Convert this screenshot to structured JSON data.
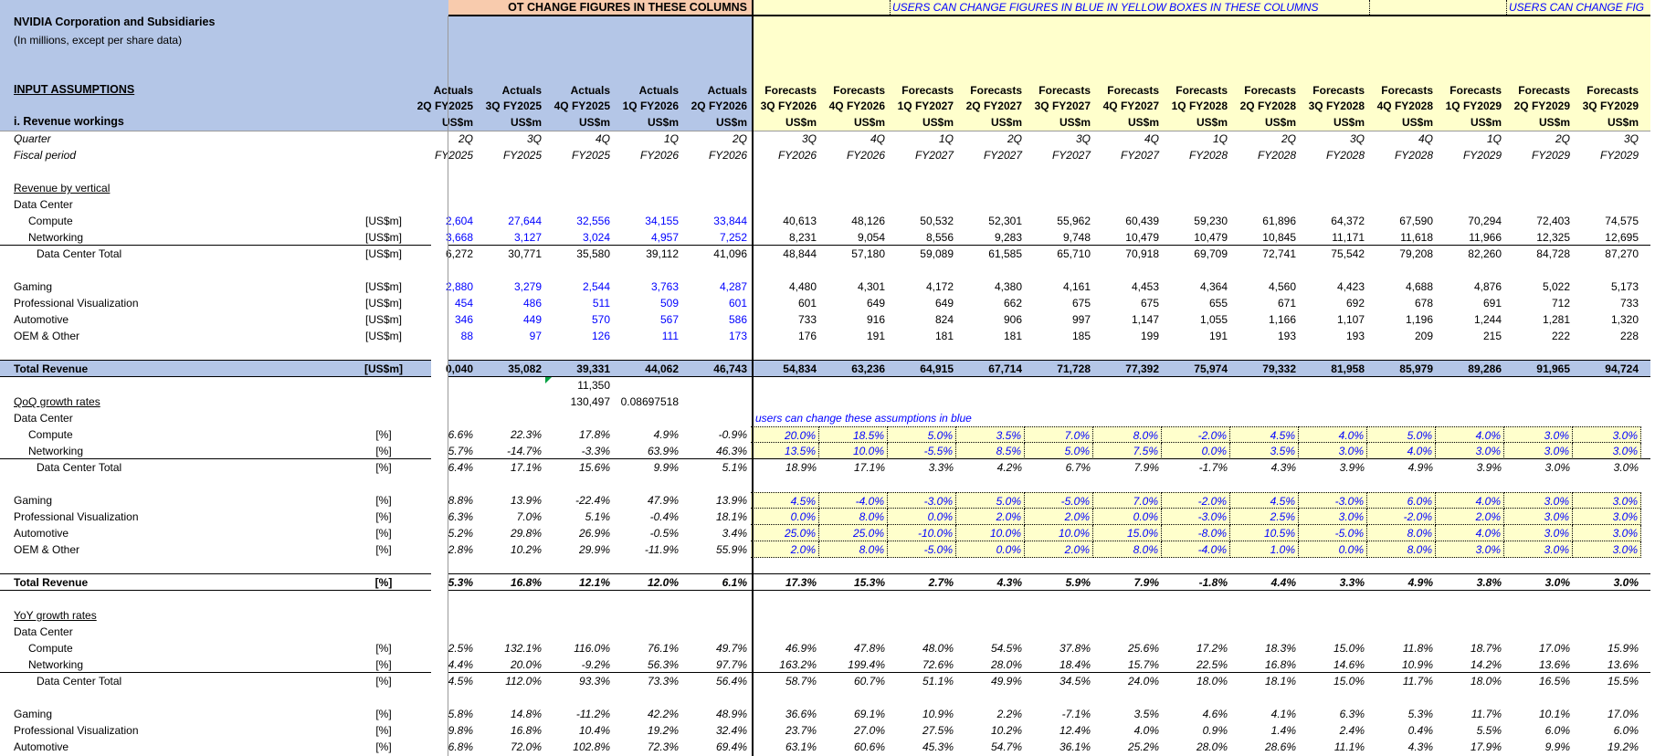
{
  "banner": {
    "locked_text": "OT CHANGE FIGURES IN THESE COLUMNS",
    "editable_text": "USERS CAN CHANGE FIGURES IN BLUE IN YELLOW BOXES IN THESE COLUMNS",
    "editable_text_2": "USERS CAN CHANGE FIG"
  },
  "header": {
    "company": "NVIDIA Corporation and Subsidiaries",
    "subtitle": "(In millions, except per share data)",
    "section": "INPUT ASSUMPTIONS",
    "subsection": "i. Revenue workings"
  },
  "colors": {
    "header_blue": "#B4C6E7",
    "locked_orange": "#F8CBAD",
    "editable_yellow": "#FFFFCC",
    "input_blue": "#0000FF",
    "comment_green": "#00A040"
  },
  "columns": [
    {
      "type": "Actuals",
      "period": "2Q FY2025",
      "unit": "US$m"
    },
    {
      "type": "Actuals",
      "period": "3Q FY2025",
      "unit": "US$m"
    },
    {
      "type": "Actuals",
      "period": "4Q FY2025",
      "unit": "US$m"
    },
    {
      "type": "Actuals",
      "period": "1Q FY2026",
      "unit": "US$m"
    },
    {
      "type": "Actuals",
      "period": "2Q FY2026",
      "unit": "US$m"
    },
    {
      "type": "Forecasts",
      "period": "3Q FY2026",
      "unit": "US$m"
    },
    {
      "type": "Forecasts",
      "period": "4Q FY2026",
      "unit": "US$m"
    },
    {
      "type": "Forecasts",
      "period": "1Q FY2027",
      "unit": "US$m"
    },
    {
      "type": "Forecasts",
      "period": "2Q FY2027",
      "unit": "US$m"
    },
    {
      "type": "Forecasts",
      "period": "3Q FY2027",
      "unit": "US$m"
    },
    {
      "type": "Forecasts",
      "period": "4Q FY2027",
      "unit": "US$m"
    },
    {
      "type": "Forecasts",
      "period": "1Q FY2028",
      "unit": "US$m"
    },
    {
      "type": "Forecasts",
      "period": "2Q FY2028",
      "unit": "US$m"
    },
    {
      "type": "Forecasts",
      "period": "3Q FY2028",
      "unit": "US$m"
    },
    {
      "type": "Forecasts",
      "period": "4Q FY2028",
      "unit": "US$m"
    },
    {
      "type": "Forecasts",
      "period": "1Q FY2029",
      "unit": "US$m"
    },
    {
      "type": "Forecasts",
      "period": "2Q FY2029",
      "unit": "US$m"
    },
    {
      "type": "Forecasts",
      "period": "3Q FY2029",
      "unit": "US$m"
    }
  ],
  "note": "users can change these assumptions in blue",
  "rows": [
    {
      "label": "Quarter",
      "style": "period",
      "values": [
        "2Q",
        "3Q",
        "4Q",
        "1Q",
        "2Q",
        "3Q",
        "4Q",
        "1Q",
        "2Q",
        "3Q",
        "4Q",
        "1Q",
        "2Q",
        "3Q",
        "4Q",
        "1Q",
        "2Q",
        "3Q"
      ]
    },
    {
      "label": "Fiscal period",
      "style": "period",
      "values": [
        "FY2025",
        "FY2025",
        "FY2025",
        "FY2026",
        "FY2026",
        "FY2026",
        "FY2026",
        "FY2027",
        "FY2027",
        "FY2027",
        "FY2027",
        "FY2028",
        "FY2028",
        "FY2028",
        "FY2028",
        "FY2029",
        "FY2029",
        "FY2029"
      ]
    },
    {
      "style": "blank"
    },
    {
      "label": "Revenue by vertical",
      "style": "heading"
    },
    {
      "label": "Data Center",
      "style": "group"
    },
    {
      "label": "Compute",
      "style": "item",
      "unit": "[US$m]",
      "fmt": "amount",
      "values": [
        "2,604",
        "27,644",
        "32,556",
        "34,155",
        "33,844",
        "40,613",
        "48,126",
        "50,532",
        "52,301",
        "55,962",
        "60,439",
        "59,230",
        "61,896",
        "64,372",
        "67,590",
        "70,294",
        "72,403",
        "74,575"
      ]
    },
    {
      "label": "Networking",
      "style": "item",
      "unit": "[US$m]",
      "fmt": "amount",
      "values": [
        "3,668",
        "3,127",
        "3,024",
        "4,957",
        "7,252",
        "8,231",
        "9,054",
        "8,556",
        "9,283",
        "9,748",
        "10,479",
        "10,479",
        "10,845",
        "11,171",
        "11,618",
        "11,966",
        "12,325",
        "12,695"
      ]
    },
    {
      "label": "Data Center Total",
      "style": "subtotal",
      "unit": "[US$m]",
      "fmt": "amount-calc",
      "values": [
        "6,272",
        "30,771",
        "35,580",
        "39,112",
        "41,096",
        "48,844",
        "57,180",
        "59,089",
        "61,585",
        "65,710",
        "70,918",
        "69,709",
        "72,741",
        "75,542",
        "79,208",
        "82,260",
        "84,728",
        "87,270"
      ]
    },
    {
      "style": "blank"
    },
    {
      "label": "Gaming",
      "style": "line",
      "unit": "[US$m]",
      "fmt": "amount",
      "values": [
        "2,880",
        "3,279",
        "2,544",
        "3,763",
        "4,287",
        "4,480",
        "4,301",
        "4,172",
        "4,380",
        "4,161",
        "4,453",
        "4,364",
        "4,560",
        "4,423",
        "4,688",
        "4,876",
        "5,022",
        "5,173"
      ]
    },
    {
      "label": "Professional Visualization",
      "style": "line",
      "unit": "[US$m]",
      "fmt": "amount",
      "values": [
        "454",
        "486",
        "511",
        "509",
        "601",
        "601",
        "649",
        "649",
        "662",
        "675",
        "675",
        "655",
        "671",
        "692",
        "678",
        "691",
        "712",
        "733"
      ]
    },
    {
      "label": "Automotive",
      "style": "line",
      "unit": "[US$m]",
      "fmt": "amount",
      "values": [
        "346",
        "449",
        "570",
        "567",
        "586",
        "733",
        "916",
        "824",
        "906",
        "997",
        "1,147",
        "1,055",
        "1,166",
        "1,107",
        "1,196",
        "1,244",
        "1,281",
        "1,320"
      ]
    },
    {
      "label": "OEM & Other",
      "style": "line",
      "unit": "[US$m]",
      "fmt": "amount",
      "values": [
        "88",
        "97",
        "126",
        "111",
        "173",
        "176",
        "191",
        "181",
        "181",
        "185",
        "199",
        "191",
        "193",
        "193",
        "209",
        "215",
        "222",
        "228"
      ]
    },
    {
      "style": "blank"
    },
    {
      "label": "Total Revenue",
      "style": "total-band",
      "unit": "[US$m]",
      "fmt": "amount-calc",
      "values": [
        "0,040",
        "35,082",
        "39,331",
        "44,062",
        "46,743",
        "54,834",
        "63,236",
        "64,915",
        "67,714",
        "71,728",
        "77,392",
        "75,974",
        "79,332",
        "81,958",
        "85,979",
        "89,286",
        "91,965",
        "94,724"
      ]
    },
    {
      "style": "stray",
      "comment_marker": true,
      "values": [
        "",
        "",
        "11,350"
      ]
    },
    {
      "label": "QoQ growth rates",
      "style": "heading",
      "fmt": "plain",
      "values": [
        "",
        "",
        "130,497",
        "0.08697518"
      ]
    },
    {
      "label": "Data Center",
      "style": "group",
      "show_note": true
    },
    {
      "label": "Compute",
      "style": "item",
      "unit": "[%]",
      "fmt": "pct",
      "input_box": "top",
      "values": [
        "6.6%",
        "22.3%",
        "17.8%",
        "4.9%",
        "-0.9%",
        "20.0%",
        "18.5%",
        "5.0%",
        "3.5%",
        "7.0%",
        "8.0%",
        "-2.0%",
        "4.5%",
        "4.0%",
        "5.0%",
        "4.0%",
        "3.0%",
        "3.0%"
      ]
    },
    {
      "label": "Networking",
      "style": "item",
      "unit": "[%]",
      "fmt": "pct",
      "input_box": "yes",
      "values": [
        "5.7%",
        "-14.7%",
        "-3.3%",
        "63.9%",
        "46.3%",
        "13.5%",
        "10.0%",
        "-5.5%",
        "8.5%",
        "5.0%",
        "7.5%",
        "0.0%",
        "3.5%",
        "3.0%",
        "4.0%",
        "3.0%",
        "3.0%",
        "3.0%"
      ]
    },
    {
      "label": "Data Center Total",
      "style": "subtotal",
      "unit": "[%]",
      "fmt": "pct",
      "values": [
        "6.4%",
        "17.1%",
        "15.6%",
        "9.9%",
        "5.1%",
        "18.9%",
        "17.1%",
        "3.3%",
        "4.2%",
        "6.7%",
        "7.9%",
        "-1.7%",
        "4.3%",
        "3.9%",
        "4.9%",
        "3.9%",
        "3.0%",
        "3.0%"
      ]
    },
    {
      "style": "blank"
    },
    {
      "label": "Gaming",
      "style": "line",
      "unit": "[%]",
      "fmt": "pct",
      "input_box": "top",
      "values": [
        "8.8%",
        "13.9%",
        "-22.4%",
        "47.9%",
        "13.9%",
        "4.5%",
        "-4.0%",
        "-3.0%",
        "5.0%",
        "-5.0%",
        "7.0%",
        "-2.0%",
        "4.5%",
        "-3.0%",
        "6.0%",
        "4.0%",
        "3.0%",
        "3.0%"
      ]
    },
    {
      "label": "Professional Visualization",
      "style": "line",
      "unit": "[%]",
      "fmt": "pct",
      "input_box": "yes",
      "values": [
        "6.3%",
        "7.0%",
        "5.1%",
        "-0.4%",
        "18.1%",
        "0.0%",
        "8.0%",
        "0.0%",
        "2.0%",
        "2.0%",
        "0.0%",
        "-3.0%",
        "2.5%",
        "3.0%",
        "-2.0%",
        "2.0%",
        "3.0%",
        "3.0%"
      ]
    },
    {
      "label": "Automotive",
      "style": "line",
      "unit": "[%]",
      "fmt": "pct",
      "input_box": "yes",
      "values": [
        "5.2%",
        "29.8%",
        "26.9%",
        "-0.5%",
        "3.4%",
        "25.0%",
        "25.0%",
        "-10.0%",
        "10.0%",
        "10.0%",
        "15.0%",
        "-8.0%",
        "10.5%",
        "-5.0%",
        "8.0%",
        "4.0%",
        "3.0%",
        "3.0%"
      ]
    },
    {
      "label": "OEM & Other",
      "style": "line",
      "unit": "[%]",
      "fmt": "pct",
      "input_box": "yes",
      "values": [
        "2.8%",
        "10.2%",
        "29.9%",
        "-11.9%",
        "55.9%",
        "2.0%",
        "8.0%",
        "-5.0%",
        "0.0%",
        "2.0%",
        "8.0%",
        "-4.0%",
        "1.0%",
        "0.0%",
        "8.0%",
        "3.0%",
        "3.0%",
        "3.0%"
      ]
    },
    {
      "style": "blank"
    },
    {
      "label": "Total Revenue",
      "style": "total",
      "unit": "[%]",
      "fmt": "pct",
      "values": [
        "5.3%",
        "16.8%",
        "12.1%",
        "12.0%",
        "6.1%",
        "17.3%",
        "15.3%",
        "2.7%",
        "4.3%",
        "5.9%",
        "7.9%",
        "-1.8%",
        "4.4%",
        "3.3%",
        "4.9%",
        "3.8%",
        "3.0%",
        "3.0%"
      ]
    },
    {
      "style": "blank"
    },
    {
      "label": "YoY growth rates",
      "style": "heading"
    },
    {
      "label": "Data Center",
      "style": "group"
    },
    {
      "label": "Compute",
      "style": "item",
      "unit": "[%]",
      "fmt": "pct",
      "values": [
        "2.5%",
        "132.1%",
        "116.0%",
        "76.1%",
        "49.7%",
        "46.9%",
        "47.8%",
        "48.0%",
        "54.5%",
        "37.8%",
        "25.6%",
        "17.2%",
        "18.3%",
        "15.0%",
        "11.8%",
        "18.7%",
        "17.0%",
        "15.9%"
      ]
    },
    {
      "label": "Networking",
      "style": "item",
      "unit": "[%]",
      "fmt": "pct",
      "values": [
        "4.4%",
        "20.0%",
        "-9.2%",
        "56.3%",
        "97.7%",
        "163.2%",
        "199.4%",
        "72.6%",
        "28.0%",
        "18.4%",
        "15.7%",
        "22.5%",
        "16.8%",
        "14.6%",
        "10.9%",
        "14.2%",
        "13.6%",
        "13.6%"
      ]
    },
    {
      "label": "Data Center Total",
      "style": "subtotal",
      "unit": "[%]",
      "fmt": "pct",
      "values": [
        "4.5%",
        "112.0%",
        "93.3%",
        "73.3%",
        "56.4%",
        "58.7%",
        "60.7%",
        "51.1%",
        "49.9%",
        "34.5%",
        "24.0%",
        "18.0%",
        "18.1%",
        "15.0%",
        "11.7%",
        "18.0%",
        "16.5%",
        "15.5%"
      ]
    },
    {
      "style": "blank"
    },
    {
      "label": "Gaming",
      "style": "line",
      "unit": "[%]",
      "fmt": "pct",
      "values": [
        "5.8%",
        "14.8%",
        "-11.2%",
        "42.2%",
        "48.9%",
        "36.6%",
        "69.1%",
        "10.9%",
        "2.2%",
        "-7.1%",
        "3.5%",
        "4.6%",
        "4.1%",
        "6.3%",
        "5.3%",
        "11.7%",
        "10.1%",
        "17.0%"
      ]
    },
    {
      "label": "Professional Visualization",
      "style": "line",
      "unit": "[%]",
      "fmt": "pct",
      "values": [
        "9.8%",
        "16.8%",
        "10.4%",
        "19.2%",
        "32.4%",
        "23.7%",
        "27.0%",
        "27.5%",
        "10.2%",
        "12.4%",
        "4.0%",
        "0.9%",
        "1.4%",
        "2.4%",
        "0.4%",
        "5.5%",
        "6.0%",
        "6.0%"
      ]
    },
    {
      "label": "Automotive",
      "style": "line",
      "unit": "[%]",
      "fmt": "pct",
      "values": [
        "6.8%",
        "72.0%",
        "102.8%",
        "72.3%",
        "69.4%",
        "63.1%",
        "60.6%",
        "45.3%",
        "54.7%",
        "36.1%",
        "25.2%",
        "28.0%",
        "28.6%",
        "11.1%",
        "4.3%",
        "17.9%",
        "9.9%",
        "19.2%"
      ]
    }
  ]
}
